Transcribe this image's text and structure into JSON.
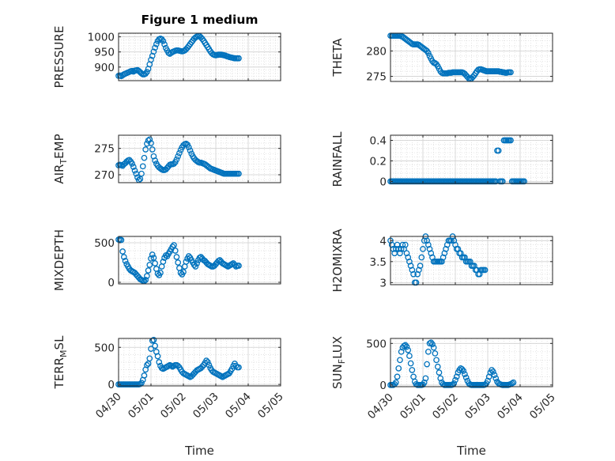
{
  "figure": {
    "title": "Figure 1 medium",
    "marker_color": "#0072BD"
  },
  "x_ticks": [
    "04/30",
    "05/01",
    "05/02",
    "05/03",
    "05/04",
    "05/05"
  ],
  "chart_data": [
    {
      "type": "scatter",
      "title": "Figure 1 medium",
      "ylabel": "PRESSURE",
      "xlabel": "",
      "ylim": [
        855,
        1012
      ],
      "yticks": [
        900,
        950,
        1000
      ],
      "xlim": [
        "2018-04-30",
        "2018-05-05"
      ],
      "grid": true,
      "x_start": "2018-04-30T00:00",
      "x_step_hours": 1,
      "y": [
        871,
        872,
        870,
        873,
        876,
        878,
        880,
        882,
        884,
        886,
        887,
        885,
        888,
        889,
        890,
        887,
        883,
        879,
        876,
        876,
        878,
        884,
        894,
        909,
        924,
        937,
        951,
        964,
        976,
        986,
        992,
        994,
        992,
        986,
        975,
        963,
        955,
        947,
        944,
        947,
        950,
        952,
        954,
        955,
        955,
        954,
        953,
        952,
        953,
        955,
        959,
        964,
        970,
        976,
        982,
        988,
        994,
        998,
        1001,
        1003,
        1002,
        998,
        993,
        987,
        980,
        973,
        966,
        959,
        952,
        946,
        942,
        940,
        939,
        940,
        941,
        941,
        941,
        940,
        939,
        938,
        936,
        935,
        933,
        932,
        931,
        930,
        929,
        929,
        929,
        929
      ]
    },
    {
      "type": "scatter",
      "title": "",
      "ylabel": "THETA",
      "xlabel": "",
      "ylim": [
        274,
        283.5
      ],
      "yticks": [
        275,
        280
      ],
      "xlim": [
        "2018-04-30",
        "2018-05-05"
      ],
      "grid": true,
      "x_start": "2018-04-30T00:00",
      "x_step_hours": 1,
      "y": [
        283,
        283,
        283,
        283,
        283,
        283,
        283,
        283,
        282.9,
        282.8,
        282.6,
        282.4,
        282.2,
        282.0,
        281.8,
        281.6,
        281.4,
        281.3,
        281.3,
        281.3,
        281.3,
        281.2,
        281.0,
        280.8,
        280.6,
        280.4,
        280.2,
        280.0,
        279.6,
        279.0,
        278.5,
        278.0,
        277.7,
        277.6,
        277.4,
        277.0,
        276.5,
        276.0,
        275.7,
        275.6,
        275.6,
        275.6,
        275.6,
        275.7,
        275.7,
        275.7,
        275.8,
        275.8,
        275.8,
        275.8,
        275.8,
        275.8,
        275.8,
        275.8,
        275.7,
        275.5,
        275.2,
        274.9,
        274.6,
        274.5,
        274.6,
        274.9,
        275.2,
        275.6,
        276.0,
        276.3,
        276.4,
        276.4,
        276.3,
        276.2,
        276.1,
        276.0,
        276.0,
        276.0,
        276.0,
        276.0,
        276.0,
        276.0,
        276.0,
        276.0,
        276.0,
        275.9,
        275.9,
        275.8,
        275.8,
        275.7,
        275.7,
        275.8,
        275.8,
        275.8
      ]
    },
    {
      "type": "scatter",
      "title": "",
      "ylabel": "AIR_TEMP",
      "xlabel": "",
      "ylim": [
        268.5,
        277.5
      ],
      "yticks": [
        270,
        275
      ],
      "xlim": [
        "2018-04-30",
        "2018-05-05"
      ],
      "grid": true,
      "x_start": "2018-04-30T00:00",
      "x_step_hours": 1,
      "y": [
        271.8,
        271.9,
        271.8,
        271.7,
        272.0,
        272.2,
        272.5,
        272.7,
        272.8,
        272.5,
        272.1,
        271.5,
        270.8,
        270.2,
        269.5,
        269.0,
        269.2,
        270.2,
        271.6,
        273.2,
        274.8,
        275.9,
        276.5,
        276.7,
        276.0,
        274.8,
        273.5,
        272.7,
        272.1,
        271.7,
        271.4,
        271.2,
        271.0,
        270.9,
        270.9,
        271.0,
        271.3,
        271.6,
        271.9,
        272.0,
        272.0,
        272.1,
        272.4,
        272.9,
        273.5,
        274.1,
        274.7,
        275.2,
        275.6,
        275.8,
        275.9,
        275.7,
        275.2,
        274.6,
        274.0,
        273.5,
        273.1,
        272.8,
        272.6,
        272.4,
        272.3,
        272.3,
        272.2,
        272.1,
        272.0,
        271.8,
        271.6,
        271.4,
        271.2,
        271.1,
        271.0,
        270.9,
        270.8,
        270.7,
        270.6,
        270.5,
        270.4,
        270.3,
        270.2,
        270.2,
        270.2,
        270.2,
        270.2,
        270.2,
        270.2,
        270.2,
        270.2,
        270.2,
        270.2,
        270.2
      ]
    },
    {
      "type": "scatter",
      "title": "",
      "ylabel": "RAINFALL",
      "xlabel": "",
      "ylim": [
        -0.02,
        0.45
      ],
      "yticks": [
        0,
        0.2,
        0.4
      ],
      "xlim": [
        "2018-04-30",
        "2018-05-05"
      ],
      "grid": true,
      "x_start": "2018-04-30T00:00",
      "x_step_hours": 1,
      "y": [
        0,
        0,
        0,
        0,
        0,
        0,
        0,
        0,
        0,
        0,
        0,
        0,
        0,
        0,
        0,
        0,
        0,
        0,
        0,
        0,
        0,
        0,
        0,
        0,
        0,
        0,
        0,
        0,
        0,
        0,
        0,
        0,
        0,
        0,
        0,
        0,
        0,
        0,
        0,
        0,
        0,
        0,
        0,
        0,
        0,
        0,
        0,
        0,
        0,
        0,
        0,
        0,
        0,
        0,
        0,
        0,
        0,
        0,
        0,
        0,
        0,
        0,
        0,
        0,
        0,
        0,
        0,
        0,
        0,
        0,
        0,
        0,
        0,
        0,
        0,
        0,
        0,
        0,
        0,
        0.3,
        0.3,
        0,
        0,
        0,
        0.4,
        0.4,
        0.4,
        0.4,
        0.4,
        0.4,
        0,
        0,
        0,
        0,
        0,
        0,
        0,
        0,
        0,
        0
      ]
    },
    {
      "type": "scatter",
      "title": "",
      "ylabel": "MIXDEPTH",
      "xlabel": "",
      "ylim": [
        -20,
        580
      ],
      "yticks": [
        0,
        500
      ],
      "xlim": [
        "2018-04-30",
        "2018-05-05"
      ],
      "grid": true,
      "x_start": "2018-04-30T00:00",
      "x_step_hours": 1,
      "y": [
        540,
        540,
        535,
        390,
        320,
        270,
        230,
        200,
        170,
        150,
        140,
        130,
        120,
        100,
        80,
        60,
        40,
        30,
        20,
        15,
        30,
        80,
        150,
        220,
        300,
        350,
        310,
        240,
        170,
        110,
        90,
        120,
        200,
        260,
        310,
        340,
        330,
        360,
        390,
        420,
        450,
        470,
        400,
        320,
        250,
        180,
        120,
        100,
        130,
        200,
        260,
        300,
        330,
        310,
        280,
        250,
        220,
        200,
        240,
        280,
        310,
        320,
        300,
        280,
        270,
        250,
        230,
        220,
        210,
        200,
        200,
        210,
        230,
        250,
        270,
        280,
        260,
        240,
        230,
        220,
        210,
        200,
        210,
        220,
        230,
        240,
        220,
        200,
        210,
        210
      ]
    },
    {
      "type": "scatter",
      "title": "",
      "ylabel": "H2OMIXRA",
      "xlabel": "",
      "ylim": [
        2.95,
        4.1
      ],
      "yticks": [
        3,
        3.5,
        4
      ],
      "xlim": [
        "2018-04-30",
        "2018-05-05"
      ],
      "grid": true,
      "x_start": "2018-04-30T00:00",
      "x_step_hours": 1,
      "y": [
        4.0,
        3.9,
        3.8,
        3.7,
        3.8,
        3.9,
        3.8,
        3.7,
        3.8,
        3.9,
        3.8,
        3.9,
        3.7,
        3.6,
        3.5,
        3.4,
        3.3,
        3.2,
        3.0,
        3.0,
        3.2,
        3.3,
        3.4,
        3.6,
        3.8,
        4.0,
        4.1,
        4.0,
        3.9,
        3.8,
        3.7,
        3.6,
        3.5,
        3.5,
        3.5,
        3.5,
        3.5,
        3.5,
        3.5,
        3.6,
        3.7,
        3.8,
        3.9,
        4.0,
        4.0,
        4.0,
        4.1,
        4.0,
        3.9,
        3.8,
        3.8,
        3.7,
        3.7,
        3.6,
        3.6,
        3.6,
        3.5,
        3.5,
        3.5,
        3.5,
        3.4,
        3.4,
        3.4,
        3.3,
        3.3,
        3.2,
        3.2,
        3.3,
        3.3,
        3.3,
        3.3
      ]
    },
    {
      "type": "scatter",
      "title": "",
      "ylabel": "TERR_MSL",
      "xlabel": "Time",
      "ylim": [
        -20,
        620
      ],
      "yticks": [
        0,
        500
      ],
      "xlim": [
        "2018-04-30",
        "2018-05-05"
      ],
      "grid": true,
      "x_start": "2018-04-30T00:00",
      "x_step_hours": 1,
      "y": [
        0,
        0,
        0,
        0,
        0,
        0,
        0,
        0,
        0,
        0,
        0,
        0,
        0,
        0,
        0,
        0,
        5,
        20,
        60,
        120,
        200,
        260,
        280,
        350,
        480,
        590,
        600,
        520,
        440,
        380,
        300,
        250,
        220,
        210,
        220,
        230,
        240,
        250,
        260,
        250,
        240,
        250,
        260,
        260,
        250,
        230,
        200,
        170,
        150,
        140,
        130,
        120,
        110,
        100,
        110,
        130,
        150,
        170,
        190,
        200,
        210,
        220,
        240,
        260,
        290,
        320,
        300,
        260,
        220,
        190,
        170,
        160,
        150,
        140,
        130,
        120,
        110,
        100,
        110,
        120,
        130,
        140,
        150,
        180,
        210,
        250,
        280,
        250,
        230,
        230
      ]
    },
    {
      "type": "scatter",
      "title": "",
      "ylabel": "SUN_FLUX",
      "xlabel": "Time",
      "ylim": [
        -20,
        560
      ],
      "yticks": [
        0,
        500
      ],
      "xlim": [
        "2018-04-30",
        "2018-05-05"
      ],
      "grid": true,
      "x_start": "2018-04-30T00:00",
      "x_step_hours": 1,
      "y": [
        0,
        0,
        0,
        10,
        30,
        100,
        200,
        300,
        400,
        450,
        470,
        480,
        460,
        420,
        350,
        260,
        180,
        100,
        40,
        10,
        0,
        0,
        0,
        0,
        5,
        30,
        80,
        250,
        400,
        500,
        510,
        490,
        450,
        380,
        300,
        220,
        150,
        80,
        30,
        10,
        0,
        0,
        0,
        0,
        0,
        0,
        5,
        20,
        60,
        100,
        150,
        180,
        200,
        190,
        170,
        130,
        90,
        50,
        20,
        5,
        0,
        0,
        0,
        0,
        0,
        0,
        0,
        0,
        0,
        0,
        5,
        20,
        50,
        100,
        150,
        180,
        160,
        120,
        80,
        40,
        20,
        10,
        5,
        0,
        0,
        0,
        0,
        0,
        5,
        10,
        20,
        30
      ]
    }
  ]
}
